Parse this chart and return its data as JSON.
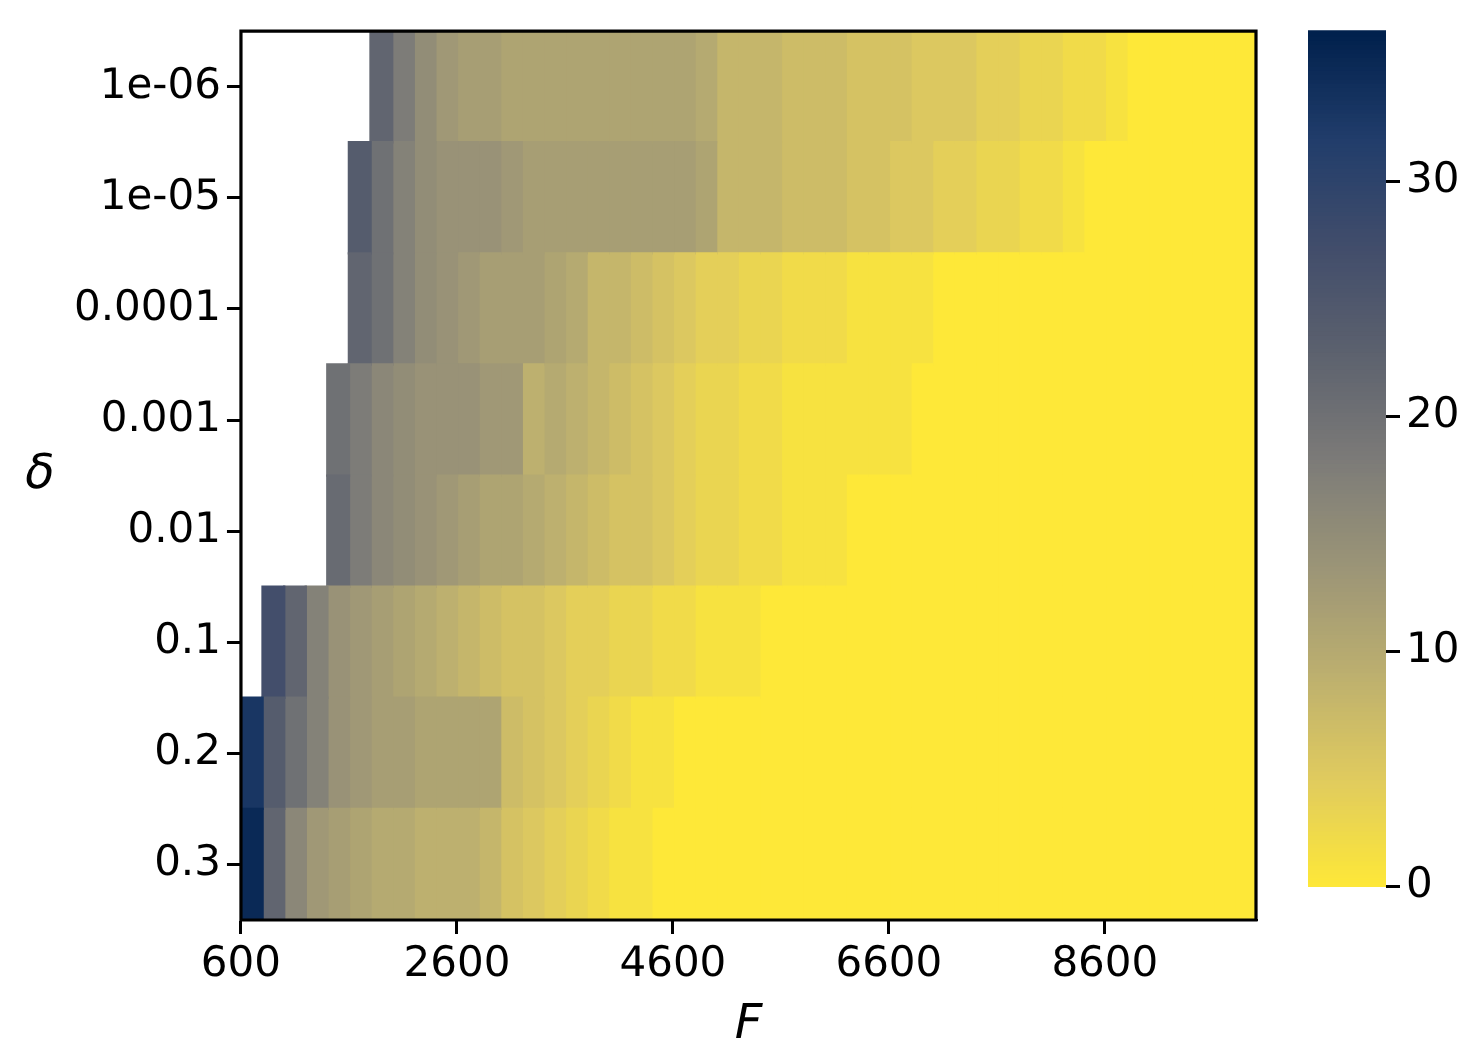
{
  "chart_data": {
    "type": "heatmap",
    "xlabel": "F",
    "ylabel": "δ",
    "x": [
      700,
      900,
      1100,
      1300,
      1500,
      1700,
      1900,
      2100,
      2300,
      2500,
      2700,
      2900,
      3100,
      3300,
      3500,
      3700,
      3900,
      4100,
      4300,
      4500,
      4700,
      4900,
      5100,
      5300,
      5500,
      5700,
      5900,
      6100,
      6300,
      6500,
      6700,
      6900,
      7100,
      7300,
      7500,
      7700,
      7900,
      8100,
      8300,
      8500,
      8700,
      8900,
      9100,
      9300,
      9500,
      9700,
      9900
    ],
    "y_categories": [
      "1e-06",
      "1e-05",
      "0.0001",
      "0.001",
      "0.01",
      "0.1",
      "0.2",
      "0.3"
    ],
    "cells": [
      [
        null,
        null,
        null,
        null,
        null,
        null,
        22,
        18,
        15,
        13,
        12,
        12,
        11,
        11,
        11,
        11,
        11,
        11,
        11,
        11,
        11,
        10,
        8,
        8,
        8,
        7,
        7,
        7,
        6,
        6,
        6,
        5,
        5,
        5,
        4,
        4,
        3,
        3,
        2,
        2,
        1,
        0,
        0,
        0,
        0,
        0,
        0
      ],
      [
        null,
        null,
        null,
        null,
        null,
        24,
        20,
        17,
        15,
        14,
        14,
        14,
        13,
        12,
        12,
        12,
        12,
        12,
        12,
        12,
        12,
        11,
        8,
        8,
        8,
        7,
        7,
        7,
        6,
        6,
        5,
        5,
        4,
        4,
        3,
        3,
        2,
        2,
        1,
        0,
        0,
        0,
        0,
        0,
        0,
        0,
        0
      ],
      [
        null,
        null,
        null,
        null,
        null,
        22,
        20,
        17,
        15,
        14,
        13,
        12,
        12,
        12,
        11,
        10,
        8,
        8,
        7,
        6,
        5,
        4,
        4,
        3,
        3,
        2,
        2,
        2,
        1,
        1,
        1,
        1,
        0,
        0,
        0,
        0,
        0,
        0,
        0,
        0,
        0,
        0,
        0,
        0,
        0,
        0,
        0
      ],
      [
        null,
        null,
        null,
        null,
        20,
        18,
        16,
        15,
        14,
        14,
        14,
        13,
        13,
        9,
        10,
        9,
        8,
        7,
        6,
        5,
        4,
        3,
        3,
        2,
        2,
        1,
        1,
        1,
        1,
        1,
        1,
        0,
        0,
        0,
        0,
        0,
        0,
        0,
        0,
        0,
        0,
        0,
        0,
        0,
        0,
        0,
        0
      ],
      [
        null,
        null,
        null,
        null,
        21,
        18,
        16,
        15,
        14,
        13,
        12,
        11,
        11,
        10,
        9,
        8,
        7,
        6,
        6,
        5,
        4,
        3,
        3,
        2,
        2,
        1,
        1,
        1,
        0,
        0,
        0,
        0,
        0,
        0,
        0,
        0,
        0,
        0,
        0,
        0,
        0,
        0,
        0,
        0,
        0,
        0,
        0
      ],
      [
        null,
        27,
        22,
        17,
        14,
        13,
        12,
        11,
        10,
        9,
        8,
        7,
        6,
        6,
        5,
        4,
        4,
        3,
        3,
        2,
        2,
        1,
        1,
        1,
        0,
        0,
        0,
        0,
        0,
        0,
        0,
        0,
        0,
        0,
        0,
        0,
        0,
        0,
        0,
        0,
        0,
        0,
        0,
        0,
        0,
        0,
        0
      ],
      [
        33,
        24,
        20,
        17,
        14,
        13,
        12,
        12,
        11,
        11,
        11,
        11,
        7,
        6,
        5,
        4,
        3,
        2,
        1,
        1,
        0,
        0,
        0,
        0,
        0,
        0,
        0,
        0,
        0,
        0,
        0,
        0,
        0,
        0,
        0,
        0,
        0,
        0,
        0,
        0,
        0,
        0,
        0,
        0,
        0,
        0,
        0
      ],
      [
        35,
        22,
        16,
        13,
        12,
        11,
        10,
        10,
        9,
        9,
        9,
        8,
        6,
        5,
        4,
        3,
        2,
        1,
        1,
        0,
        0,
        0,
        0,
        0,
        0,
        0,
        0,
        0,
        0,
        0,
        0,
        0,
        0,
        0,
        0,
        0,
        0,
        0,
        0,
        0,
        0,
        0,
        0,
        0,
        0,
        0,
        0
      ]
    ],
    "xlim": [
      600,
      10000
    ],
    "xticks": [
      600,
      2600,
      4600,
      6600,
      8600
    ],
    "clim": [
      0,
      36.4
    ],
    "cticks": [
      0,
      10,
      20,
      30
    ]
  }
}
